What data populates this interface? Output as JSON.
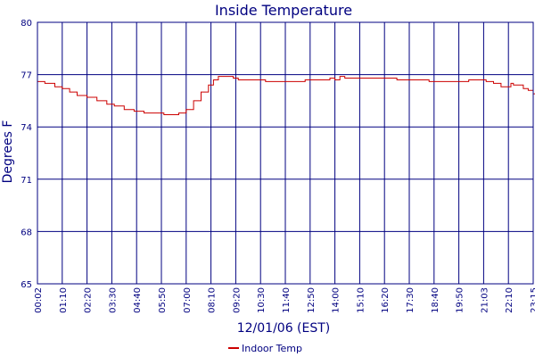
{
  "chart_data": {
    "type": "line",
    "title": "Inside Temperature",
    "xlabel": "12/01/06 (EST)",
    "ylabel": "Degrees F",
    "ylim": [
      65,
      80
    ],
    "y_ticks": [
      "65",
      "68",
      "71",
      "74",
      "77",
      "80"
    ],
    "x_ticks": [
      "00:02",
      "01:10",
      "02:20",
      "03:30",
      "04:40",
      "05:50",
      "07:00",
      "08:10",
      "09:20",
      "10:30",
      "11:40",
      "12:50",
      "14:00",
      "15:10",
      "16:20",
      "17:30",
      "18:40",
      "19:50",
      "21:03",
      "22:10",
      "23:15"
    ],
    "grid": true,
    "legend_position": "bottom-center",
    "colors": {
      "line": "#cc0000",
      "grid": "#000080",
      "axis": "#000080",
      "text": "#000080"
    },
    "series": [
      {
        "name": "Indoor Temp",
        "x": [
          0,
          0.3,
          0.7,
          1.0,
          1.3,
          1.6,
          2.0,
          2.4,
          2.8,
          3.1,
          3.5,
          3.9,
          4.3,
          4.5,
          4.8,
          5.1,
          5.4,
          5.7,
          6.0,
          6.3,
          6.6,
          6.9,
          7.1,
          7.3,
          7.5,
          7.7,
          7.9,
          8.1,
          8.3,
          8.6,
          8.9,
          9.2,
          9.6,
          10.0,
          10.4,
          10.8,
          11.2,
          11.5,
          11.8,
          12.0,
          12.2,
          12.4,
          12.7,
          13.0,
          13.3,
          13.6,
          13.9,
          14.2,
          14.5,
          14.8,
          15.1,
          15.4,
          15.8,
          16.2,
          16.6,
          17.0,
          17.4,
          17.8,
          18.1,
          18.4,
          18.7,
          18.9,
          19.1,
          19.2,
          19.4,
          19.6,
          19.8,
          20.0,
          20.3,
          20.6,
          20.8,
          21.0
        ],
        "y": [
          76.6,
          76.5,
          76.3,
          76.2,
          76.0,
          75.8,
          75.7,
          75.5,
          75.3,
          75.2,
          75.0,
          74.9,
          74.8,
          74.8,
          74.8,
          74.7,
          74.7,
          74.8,
          75.0,
          75.5,
          76.0,
          76.4,
          76.7,
          76.9,
          76.9,
          76.9,
          76.8,
          76.7,
          76.7,
          76.7,
          76.7,
          76.6,
          76.6,
          76.6,
          76.6,
          76.7,
          76.7,
          76.7,
          76.8,
          76.7,
          76.9,
          76.8,
          76.8,
          76.8,
          76.8,
          76.8,
          76.8,
          76.8,
          76.7,
          76.7,
          76.7,
          76.7,
          76.6,
          76.6,
          76.6,
          76.6,
          76.7,
          76.7,
          76.6,
          76.5,
          76.3,
          76.3,
          76.5,
          76.4,
          76.4,
          76.2,
          76.1,
          75.9,
          75.6,
          75.2,
          74.9,
          74.6
        ]
      }
    ]
  }
}
